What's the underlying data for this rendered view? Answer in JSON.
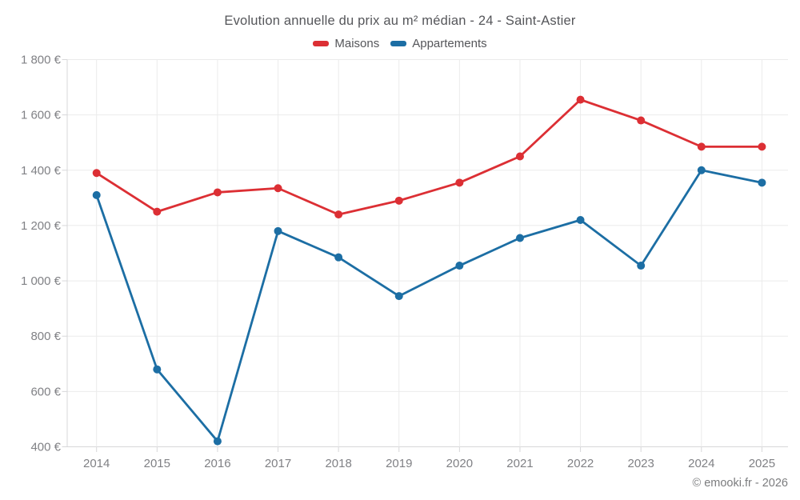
{
  "title": "Evolution annuelle du prix au m² médian - 24 - Saint-Astier",
  "footer": "© emooki.fr - 2026",
  "colors": {
    "maisons": "#dc2f34",
    "appartements": "#1c6ea4",
    "grid": "#ebebeb",
    "axis": "#d7d7d9",
    "tick_text": "#808185",
    "title_text": "#55565a",
    "credit_text": "#7b7c7e",
    "background": "#ffffff"
  },
  "chart_data": {
    "type": "line",
    "title": "Evolution annuelle du prix au m² médian - 24 - Saint-Astier",
    "x_labels": [
      "2014",
      "2015",
      "2016",
      "2017",
      "2018",
      "2019",
      "2020",
      "2021",
      "2022",
      "2023",
      "2024",
      "2025"
    ],
    "series": [
      {
        "name": "Maisons",
        "color": "#dc2f34",
        "values": [
          1390,
          1250,
          1320,
          1335,
          1240,
          1290,
          1355,
          1450,
          1655,
          1580,
          1485,
          1485
        ]
      },
      {
        "name": "Appartements",
        "color": "#1c6ea4",
        "values": [
          1310,
          680,
          420,
          1180,
          1085,
          945,
          1055,
          1155,
          1220,
          1055,
          1400,
          1355
        ]
      }
    ],
    "ylim": [
      400,
      1800
    ],
    "ytick_step": 200,
    "ytick_labels": [
      "400 €",
      "600 €",
      "800 €",
      "1 000 €",
      "1 200 €",
      "1 400 €",
      "1 600 €",
      "1 800 €"
    ],
    "yunit": "€",
    "grid": true,
    "legend_position": "top-center",
    "marker": "circle"
  }
}
